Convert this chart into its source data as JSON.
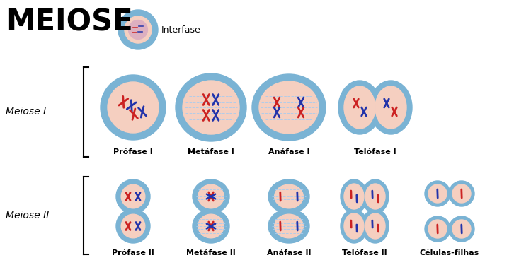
{
  "title": "MEIOSE",
  "interfase_label": "Interfase",
  "meiose1_label": "Meiose I",
  "meiose2_label": "Meiose II",
  "row1_labels": [
    "Prófase I",
    "Metáfase I",
    "Anáfase I",
    "Telófase I"
  ],
  "row2_labels": [
    "Prófase II",
    "Metáfase II",
    "Anáfase II",
    "Telófase II",
    "Células-filhas"
  ],
  "bg_color": "#ffffff",
  "cell_outer_color": "#7ab3d4",
  "cell_inner_color": "#f5cfc0",
  "chr_red": "#cc2222",
  "chr_blue": "#2233aa",
  "spindle_color": "#aaccee",
  "label_fontsize": 8.0,
  "title_fontsize": 30
}
